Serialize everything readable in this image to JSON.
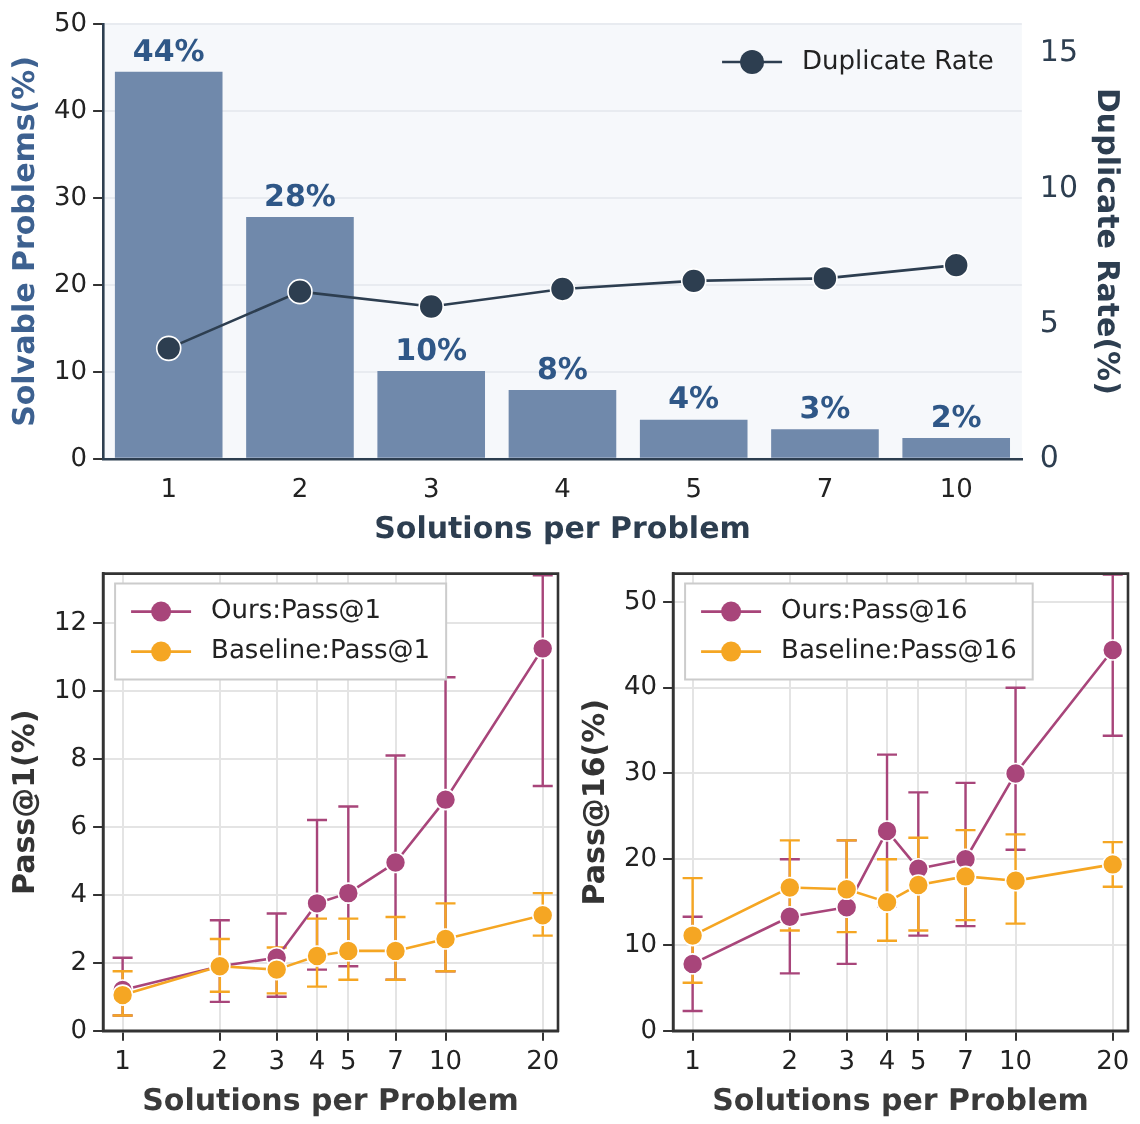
{
  "chart_data": [
    {
      "type": "bar",
      "xlabel": "Solutions per Problem",
      "ylabel": "Solvable Problems(%)",
      "y2label": "Duplicate Rate(%)",
      "categories": [
        "1",
        "2",
        "3",
        "4",
        "5",
        "7",
        "10"
      ],
      "series": [
        {
          "color": "#7089ab",
          "values": [
            44.5,
            27.8,
            10.1,
            7.9,
            4.5,
            3.4,
            2.4
          ],
          "value_labels": [
            "44%",
            "28%",
            "10%",
            "8%",
            "4%",
            "3%",
            "2%"
          ]
        },
        {
          "name": "Duplicate Rate",
          "type": "line",
          "axis": "y2",
          "color": "#2d3e50",
          "marker": "circle",
          "values": [
            4.09,
            6.19,
            5.64,
            6.29,
            6.59,
            6.68,
            7.17
          ]
        }
      ],
      "ylim": [
        0,
        50
      ],
      "yticks": [
        0,
        10,
        20,
        30,
        40,
        50
      ],
      "y2lim": [
        0,
        16.1
      ],
      "y2ticks": [
        0,
        5,
        10,
        15
      ],
      "grid": "y",
      "legend": "top right"
    },
    {
      "type": "line",
      "xlabel": "Solutions per Problem",
      "ylabel": "Pass@1(%)",
      "x": [
        1,
        2,
        3,
        4,
        5,
        7,
        10,
        20
      ],
      "log": "x",
      "marker": "circle",
      "series": [
        {
          "name": "Ours:Pass@1",
          "color": "#a8457a",
          "values": [
            1.2,
            1.9,
            2.15,
            3.75,
            4.05,
            4.95,
            6.8,
            11.25
          ],
          "errors": [
            [
              0.45,
              2.15
            ],
            [
              0.85,
              3.25
            ],
            [
              1.0,
              3.45
            ],
            [
              1.8,
              6.2
            ],
            [
              1.9,
              6.6
            ],
            [
              1.5,
              8.1
            ],
            [
              1.75,
              10.4
            ],
            [
              7.2,
              13.4
            ]
          ]
        },
        {
          "name": "Baseline:Pass@1",
          "color": "#f5a623",
          "values": [
            1.05,
            1.9,
            1.8,
            2.2,
            2.35,
            2.35,
            2.7,
            3.4
          ],
          "errors": [
            [
              0.45,
              1.75
            ],
            [
              1.15,
              2.7
            ],
            [
              1.1,
              2.45
            ],
            [
              1.3,
              3.3
            ],
            [
              1.5,
              3.3
            ],
            [
              1.5,
              3.35
            ],
            [
              1.75,
              3.75
            ],
            [
              2.8,
              4.05
            ]
          ]
        }
      ],
      "xlim": [
        0.87,
        22.3
      ],
      "xticks": [
        1,
        2,
        3,
        4,
        5,
        7,
        10,
        20
      ],
      "ylim": [
        0,
        13.45
      ],
      "yticks": [
        0,
        2,
        4,
        6,
        8,
        10,
        12
      ],
      "grid": true,
      "legend": "top left"
    },
    {
      "type": "line",
      "xlabel": "Solutions per Problem",
      "ylabel": "Pass@16(%)",
      "x": [
        1,
        2,
        3,
        4,
        5,
        7,
        10,
        20
      ],
      "log": "x",
      "marker": "circle",
      "series": [
        {
          "name": "Ours:Pass@16",
          "color": "#a8457a",
          "values": [
            7.8,
            13.3,
            14.4,
            23.3,
            18.9,
            20,
            30,
            44.4
          ],
          "errors": [
            [
              2.3,
              13.3
            ],
            [
              6.7,
              20
            ],
            [
              7.8,
              22.2
            ],
            [
              14.5,
              32.2
            ],
            [
              11.1,
              27.8
            ],
            [
              12.2,
              28.9
            ],
            [
              21.1,
              40
            ],
            [
              34.4,
              53.2
            ]
          ]
        },
        {
          "name": "Baseline:Pass@16",
          "color": "#f5a623",
          "values": [
            11.1,
            16.7,
            16.5,
            15,
            17,
            18,
            17.5,
            19.4
          ],
          "errors": [
            [
              5.6,
              17.8
            ],
            [
              11.7,
              22.2
            ],
            [
              11.5,
              22.2
            ],
            [
              10.5,
              20
            ],
            [
              11.7,
              22.5
            ],
            [
              12.9,
              23.4
            ],
            [
              12.5,
              22.9
            ],
            [
              16.8,
              22
            ]
          ]
        }
      ],
      "xlim": [
        0.87,
        22.3
      ],
      "xticks": [
        1,
        2,
        3,
        4,
        5,
        7,
        10,
        20
      ],
      "ylim": [
        0,
        53.3
      ],
      "yticks": [
        0,
        10,
        20,
        30,
        40,
        50
      ],
      "grid": true,
      "legend": "top left"
    }
  ]
}
